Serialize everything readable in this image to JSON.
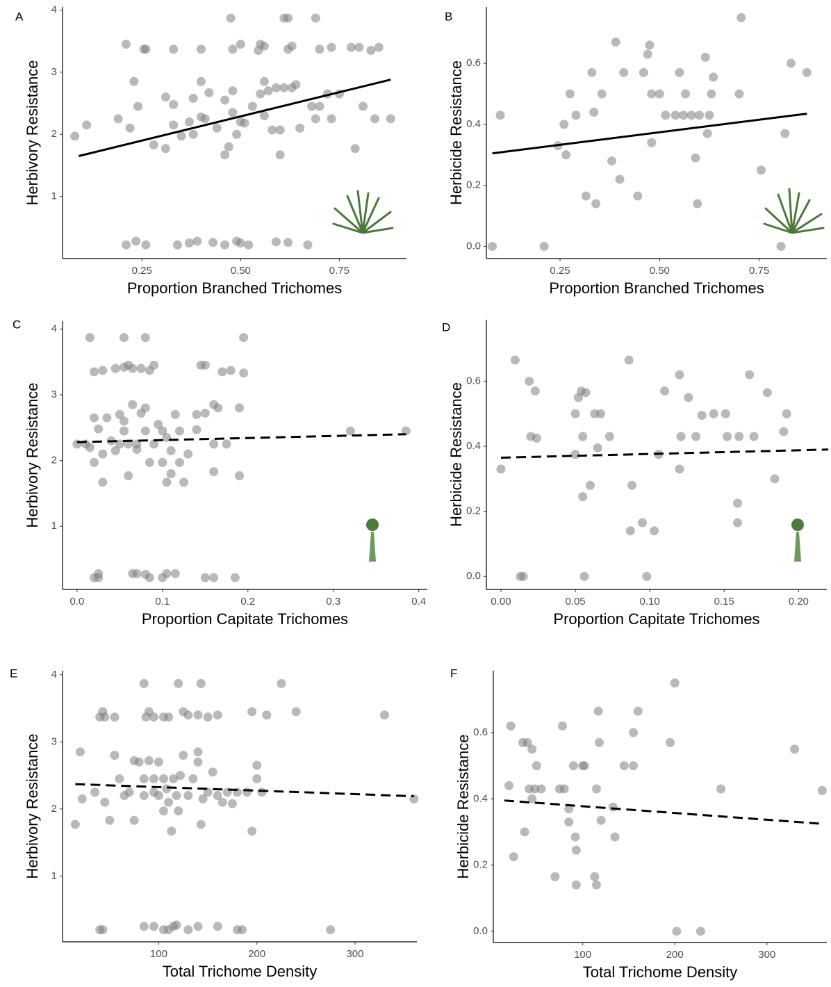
{
  "chart_data": [
    {
      "type": "scatter",
      "panel_label": "A",
      "x_label": "Proportion Branched Trichomes",
      "y_label": "Herbivory Resistance",
      "color": "#808080",
      "x": [
        0.21,
        0.235,
        0.26,
        0.34,
        0.37,
        0.39,
        0.43,
        0.46,
        0.49,
        0.5,
        0.52,
        0.59,
        0.62,
        0.67,
        0.21,
        0.26,
        0.255,
        0.33,
        0.4,
        0.475,
        0.5,
        0.48,
        0.55,
        0.545,
        0.56,
        0.61,
        0.62,
        0.62,
        0.63,
        0.69,
        0.73,
        0.78,
        0.8,
        0.83,
        0.85,
        0.7,
        0.08,
        0.11,
        0.19,
        0.22,
        0.23,
        0.24,
        0.28,
        0.31,
        0.31,
        0.33,
        0.33,
        0.35,
        0.37,
        0.38,
        0.38,
        0.4,
        0.4,
        0.41,
        0.42,
        0.44,
        0.46,
        0.46,
        0.47,
        0.48,
        0.48,
        0.49,
        0.5,
        0.51,
        0.53,
        0.55,
        0.56,
        0.56,
        0.57,
        0.58,
        0.59,
        0.6,
        0.6,
        0.61,
        0.63,
        0.64,
        0.65,
        0.68,
        0.69,
        0.7,
        0.72,
        0.73,
        0.75,
        0.79,
        0.81,
        0.84,
        0.88
      ],
      "values": [
        0.22,
        0.28,
        0.22,
        0.22,
        0.25,
        0.28,
        0.26,
        0.22,
        0.28,
        0.25,
        0.22,
        0.27,
        0.26,
        0.22,
        3.45,
        3.37,
        3.37,
        3.37,
        3.37,
        3.87,
        3.45,
        3.37,
        3.45,
        3.35,
        3.42,
        3.87,
        3.87,
        3.37,
        3.42,
        3.87,
        3.4,
        3.4,
        3.4,
        3.35,
        3.4,
        3.37,
        1.97,
        2.15,
        2.25,
        2.1,
        2.85,
        2.45,
        1.83,
        1.77,
        2.6,
        2.48,
        2.15,
        1.97,
        2.2,
        2.0,
        2.58,
        2.85,
        2.28,
        2.25,
        2.67,
        2.1,
        2.55,
        1.67,
        1.8,
        2.7,
        2.35,
        2.0,
        2.2,
        2.18,
        2.45,
        2.65,
        2.3,
        2.85,
        2.7,
        2.07,
        2.75,
        2.07,
        1.67,
        2.75,
        2.75,
        2.8,
        2.1,
        2.45,
        2.25,
        2.45,
        2.65,
        2.25,
        2.65,
        1.77,
        2.45,
        2.25,
        2.25
      ],
      "xlim": [
        0.049,
        0.92
      ],
      "ylim": [
        0,
        4.05
      ],
      "xticks": [
        0.25,
        {
          "value": 0.5,
          "label": "0.50"
        },
        0.75
      ],
      "yticks": [
        1,
        2,
        3,
        4
      ],
      "trend_line": {
        "x": [
          0.09,
          0.88
        ],
        "values": [
          1.65,
          2.88
        ],
        "dashed": false,
        "color": "#000000"
      }
    },
    {
      "type": "scatter",
      "panel_label": "B",
      "x_label": "Proportion Branched Trichomes",
      "y_label": "Herbicide Resistance",
      "color": "#808080",
      "x": [
        0.08,
        0.1,
        0.21,
        0.245,
        0.26,
        0.265,
        0.275,
        0.29,
        0.315,
        0.33,
        0.335,
        0.34,
        0.355,
        0.38,
        0.39,
        0.4,
        0.41,
        0.445,
        0.46,
        0.47,
        0.475,
        0.48,
        0.48,
        0.5,
        0.515,
        0.54,
        0.55,
        0.56,
        0.565,
        0.58,
        0.59,
        0.595,
        0.6,
        0.615,
        0.62,
        0.625,
        0.63,
        0.635,
        0.7,
        0.705,
        0.755,
        0.805,
        0.815,
        0.83,
        0.87
      ],
      "values": [
        0,
        0.43,
        0,
        0.33,
        0.4,
        0.3,
        0.5,
        0.43,
        0.165,
        0.57,
        0.44,
        0.14,
        0.5,
        0.28,
        0.67,
        0.22,
        0.57,
        0.165,
        0.57,
        0.63,
        0.66,
        0.5,
        0.34,
        0.5,
        0.43,
        0.43,
        0.57,
        0.43,
        0.5,
        0.43,
        0.29,
        0.14,
        0.43,
        0.62,
        0.37,
        0.43,
        0.5,
        0.555,
        0.5,
        0.75,
        0.25,
        0,
        0.37,
        0.6,
        0.57
      ],
      "xlim": [
        0.065,
        0.92
      ],
      "ylim": [
        -0.04,
        0.785
      ],
      "xticks": [
        0.25,
        {
          "value": 0.5,
          "label": "0.50"
        },
        0.75
      ],
      "yticks": [
        {
          "value": 0,
          "label": "0.0"
        },
        0.2,
        0.4,
        0.6
      ],
      "trend_line": {
        "x": [
          0.08,
          0.87
        ],
        "values": [
          0.305,
          0.435
        ],
        "dashed": false,
        "color": "#000000"
      }
    },
    {
      "type": "scatter",
      "panel_label": "C",
      "x_label": "Proportion Capitate Trichomes",
      "y_label": "Herbivory Resistance",
      "color": "#808080",
      "x": [
        0.02,
        0.025,
        0.025,
        0.065,
        0.07,
        0.08,
        0.085,
        0.1,
        0.105,
        0.115,
        0.15,
        0.16,
        0.185,
        0.015,
        0.02,
        0.03,
        0.045,
        0.055,
        0.06,
        0.065,
        0.075,
        0.085,
        0.09,
        0.055,
        0.08,
        0.15,
        0.145,
        0.17,
        0.18,
        0.195,
        0.195,
        0,
        0.01,
        0.015,
        0.02,
        0.02,
        0.025,
        0.03,
        0.03,
        0.035,
        0.04,
        0.045,
        0.05,
        0.05,
        0.055,
        0.055,
        0.06,
        0.06,
        0.065,
        0.07,
        0.07,
        0.075,
        0.08,
        0.08,
        0.085,
        0.09,
        0.095,
        0.1,
        0.1,
        0.105,
        0.105,
        0.11,
        0.11,
        0.115,
        0.12,
        0.12,
        0.125,
        0.13,
        0.14,
        0.14,
        0.15,
        0.16,
        0.16,
        0.16,
        0.165,
        0.175,
        0.19,
        0.19,
        0.32,
        0.385
      ],
      "values": [
        0.22,
        0.28,
        0.22,
        0.28,
        0.28,
        0.27,
        0.22,
        0.22,
        0.28,
        0.28,
        0.22,
        0.22,
        0.22,
        3.87,
        3.35,
        3.37,
        3.4,
        3.42,
        3.45,
        3.4,
        3.4,
        3.37,
        3.45,
        3.87,
        3.87,
        3.45,
        3.45,
        3.35,
        3.37,
        3.87,
        3.33,
        2.25,
        2.25,
        2.2,
        2.65,
        1.97,
        2.48,
        2.1,
        1.67,
        2.65,
        2.3,
        2.15,
        2.7,
        2.25,
        2.6,
        2.45,
        2.25,
        1.77,
        2.85,
        2.25,
        2.17,
        2.72,
        2.8,
        2.45,
        1.97,
        2.25,
        2.55,
        2.45,
        1.97,
        2.35,
        1.67,
        2.15,
        1.8,
        2.7,
        1.97,
        2.45,
        1.67,
        2.1,
        2.47,
        2.7,
        2.72,
        2.85,
        2.25,
        1.83,
        2.8,
        2.25,
        2.8,
        1.77,
        2.45,
        2.45
      ],
      "xlim": [
        -0.017,
        0.41
      ],
      "ylim": [
        0.04,
        4.12
      ],
      "xticks": [
        {
          "value": 0,
          "label": "0.0"
        },
        0.1,
        0.2,
        0.3,
        0.4
      ],
      "yticks": [
        1,
        2,
        3,
        4
      ],
      "trend_line": {
        "x": [
          0,
          0.385
        ],
        "values": [
          2.28,
          2.4
        ],
        "dashed": true,
        "color": "#000000"
      }
    },
    {
      "type": "scatter",
      "panel_label": "D",
      "x_label": "Proportion Capitate Trichomes",
      "y_label": "Herbicide Resistance",
      "color": "#808080",
      "x": [
        0,
        0.0095,
        0.013,
        0.015,
        0.019,
        0.02,
        0.023,
        0.024,
        0.05,
        0.05,
        0.052,
        0.054,
        0.055,
        0.055,
        0.056,
        0.057,
        0.06,
        0.063,
        0.065,
        0.067,
        0.073,
        0.086,
        0.087,
        0.088,
        0.095,
        0.098,
        0.103,
        0.106,
        0.11,
        0.12,
        0.12,
        0.121,
        0.126,
        0.131,
        0.135,
        0.143,
        0.151,
        0.152,
        0.159,
        0.159,
        0.16,
        0.167,
        0.17,
        0.179,
        0.184,
        0.19,
        0.192
      ],
      "values": [
        0.33,
        0.665,
        0,
        0,
        0.6,
        0.43,
        0.57,
        0.425,
        0.5,
        0.375,
        0.55,
        0.57,
        0.43,
        0.245,
        0,
        0.565,
        0.28,
        0.5,
        0.395,
        0.5,
        0.43,
        0.665,
        0.14,
        0.28,
        0.165,
        0,
        0.14,
        0.375,
        0.57,
        0.33,
        0.62,
        0.43,
        0.55,
        0.43,
        0.495,
        0.5,
        0.5,
        0.43,
        0.225,
        0.165,
        0.43,
        0.62,
        0.43,
        0.565,
        0.3,
        0.445,
        0.5
      ],
      "xlim": [
        -0.0098,
        0.219
      ],
      "ylim": [
        -0.04,
        0.789
      ],
      "xticks": [
        {
          "value": 0,
          "label": "0.00"
        },
        0.05,
        {
          "value": 0.1,
          "label": "0.10"
        },
        0.15,
        {
          "value": 0.2,
          "label": "0.20"
        }
      ],
      "yticks": [
        {
          "value": 0,
          "label": "0.0"
        },
        0.2,
        0.4,
        0.6
      ],
      "trend_line": {
        "x": [
          0,
          0.22
        ],
        "values": [
          0.365,
          0.39
        ],
        "dashed": true,
        "color": "#000000"
      }
    },
    {
      "type": "scatter",
      "panel_label": "E",
      "x_label": "Total Trichome Density",
      "y_label": "Herbivory Resistance",
      "color": "#808080",
      "x": [
        40,
        43,
        85,
        95,
        105,
        110,
        115,
        118,
        130,
        140,
        160,
        180,
        185,
        275,
        40,
        43,
        45,
        55,
        85,
        87,
        90,
        95,
        105,
        110,
        120,
        125,
        130,
        140,
        143,
        150,
        160,
        195,
        210,
        225,
        240,
        330,
        15,
        20,
        22,
        35,
        45,
        50,
        55,
        60,
        65,
        70,
        75,
        75,
        80,
        85,
        85,
        90,
        95,
        95,
        100,
        100,
        105,
        105,
        108,
        110,
        113,
        115,
        118,
        120,
        122,
        125,
        130,
        135,
        140,
        140,
        143,
        145,
        150,
        155,
        160,
        165,
        170,
        175,
        180,
        190,
        195,
        200,
        200,
        205,
        360
      ],
      "values": [
        0.2,
        0.2,
        0.25,
        0.25,
        0.2,
        0.2,
        0.25,
        0.27,
        0.2,
        0.25,
        0.25,
        0.2,
        0.2,
        0.2,
        3.37,
        3.45,
        3.37,
        3.37,
        3.87,
        3.37,
        3.45,
        3.37,
        3.37,
        3.37,
        3.87,
        3.45,
        3.4,
        3.4,
        3.87,
        3.37,
        3.4,
        3.45,
        3.4,
        3.87,
        3.45,
        3.4,
        1.77,
        2.85,
        2.15,
        2.25,
        2.1,
        1.83,
        2.8,
        2.45,
        2.2,
        2.25,
        1.83,
        2.72,
        2.7,
        2.45,
        2.2,
        2.72,
        2.45,
        2.25,
        2.7,
        2.2,
        2.45,
        1.97,
        2.3,
        2.1,
        1.67,
        2.45,
        2.2,
        1.97,
        2.5,
        2.8,
        2.2,
        2.45,
        2.85,
        2.7,
        1.77,
        2.15,
        2.25,
        2.55,
        2.2,
        2.1,
        2.25,
        2.08,
        2.25,
        2.25,
        1.67,
        2.65,
        2.45,
        2.25,
        2.15
      ],
      "xlim": [
        2,
        363
      ],
      "ylim": [
        0.02,
        4.06
      ],
      "xticks": [
        100,
        200,
        300
      ],
      "yticks": [
        1,
        2,
        3,
        4
      ],
      "trend_line": {
        "x": [
          15,
          360
        ],
        "values": [
          2.37,
          2.19
        ],
        "dashed": true,
        "color": "#000000"
      }
    },
    {
      "type": "scatter",
      "panel_label": "F",
      "x_label": "Total Trichome Density",
      "y_label": "Herbicide Resistance",
      "color": "#808080",
      "x": [
        20,
        22,
        25,
        35,
        37,
        40,
        42,
        45,
        45,
        48,
        50,
        55,
        70,
        75,
        78,
        80,
        85,
        85,
        90,
        92,
        93,
        93,
        100,
        102,
        113,
        115,
        115,
        117,
        118,
        120,
        133,
        135,
        145,
        160,
        155,
        155,
        195,
        200,
        202,
        228,
        250,
        330,
        360
      ],
      "values": [
        0.44,
        0.62,
        0.225,
        0.57,
        0.3,
        0.57,
        0.43,
        0.4,
        0.55,
        0.43,
        0.5,
        0.43,
        0.165,
        0.43,
        0.62,
        0.43,
        0.37,
        0.33,
        0.5,
        0.285,
        0.245,
        0.14,
        0.5,
        0.5,
        0.165,
        0.14,
        0.43,
        0.665,
        0.57,
        0.335,
        0.375,
        0.285,
        0.5,
        0.665,
        0.6,
        0.5,
        0.57,
        0.75,
        0,
        0,
        0.43,
        0.55,
        0.425
      ],
      "xlim": [
        3,
        365
      ],
      "ylim": [
        -0.034,
        0.787
      ],
      "xticks": [
        100,
        200,
        300
      ],
      "yticks": [
        {
          "value": 0,
          "label": "0.0"
        },
        0.2,
        0.4,
        0.6
      ],
      "trend_line": {
        "x": [
          15,
          358
        ],
        "values": [
          0.395,
          0.325
        ],
        "dashed": true,
        "color": "#000000"
      }
    }
  ]
}
